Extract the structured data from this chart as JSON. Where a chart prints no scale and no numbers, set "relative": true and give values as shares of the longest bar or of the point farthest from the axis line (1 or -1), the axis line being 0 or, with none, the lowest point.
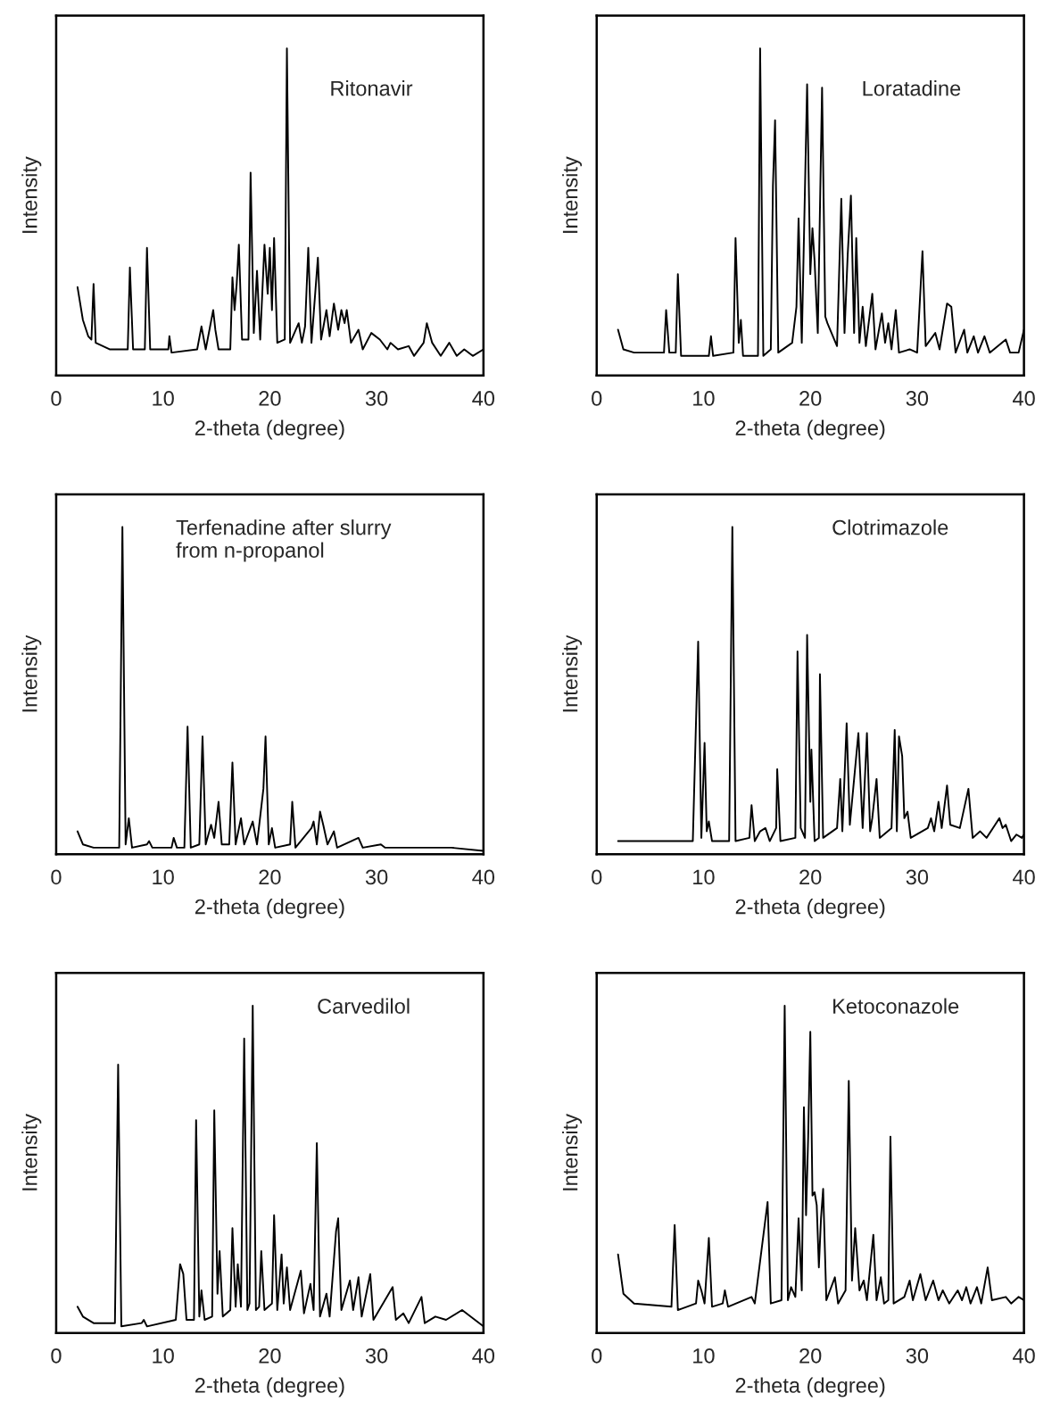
{
  "chart_data": [
    {
      "type": "line",
      "relative": true,
      "xlabel": "2-theta (degree)",
      "ylabel": "Intensity",
      "annotations": [
        "Ritonavir"
      ],
      "xlim": [
        0,
        40
      ],
      "xticks": [
        0,
        10,
        20,
        30,
        40
      ],
      "x": [
        2.0,
        2.5,
        3.0,
        3.3,
        3.5,
        3.7,
        5,
        6.7,
        6.9,
        7.2,
        8.3,
        8.5,
        8.8,
        10.5,
        10.6,
        10.8,
        13.2,
        13.6,
        14.0,
        14.7,
        14.9,
        15.2,
        16.3,
        16.5,
        16.7,
        16.9,
        17.1,
        17.4,
        18.0,
        18.2,
        18.5,
        18.8,
        19.1,
        19.5,
        19.8,
        20.0,
        20.2,
        20.4,
        20.7,
        21.4,
        21.6,
        21.9,
        22.7,
        23.0,
        23.3,
        23.6,
        23.9,
        24.5,
        24.8,
        25.3,
        25.6,
        26.0,
        26.4,
        26.7,
        27.0,
        27.2,
        27.6,
        28.3,
        28.7,
        29.5,
        30.3,
        31.0,
        31.3,
        32.0,
        33.0,
        33.5,
        34.4,
        34.7,
        35.2,
        36.0,
        36.8,
        37.5,
        38.2,
        39.0,
        40
      ],
      "series": [
        {
          "color": "#000000",
          "values": [
            0.27,
            0.17,
            0.12,
            0.11,
            0.28,
            0.1,
            0.08,
            0.08,
            0.33,
            0.08,
            0.08,
            0.39,
            0.08,
            0.08,
            0.12,
            0.07,
            0.08,
            0.15,
            0.08,
            0.2,
            0.14,
            0.08,
            0.08,
            0.3,
            0.2,
            0.28,
            0.4,
            0.11,
            0.11,
            0.62,
            0.13,
            0.32,
            0.11,
            0.4,
            0.25,
            0.39,
            0.2,
            0.42,
            0.1,
            0.11,
            1.0,
            0.1,
            0.16,
            0.1,
            0.15,
            0.39,
            0.1,
            0.36,
            0.11,
            0.2,
            0.12,
            0.22,
            0.14,
            0.2,
            0.16,
            0.2,
            0.1,
            0.14,
            0.08,
            0.13,
            0.11,
            0.08,
            0.1,
            0.08,
            0.09,
            0.06,
            0.1,
            0.16,
            0.1,
            0.06,
            0.1,
            0.06,
            0.08,
            0.06,
            0.08
          ]
        }
      ]
    },
    {
      "type": "line",
      "relative": true,
      "xlabel": "2-theta (degree)",
      "ylabel": "Intensity",
      "annotations": [
        "Loratadine"
      ],
      "xlim": [
        0,
        40
      ],
      "xticks": [
        0,
        10,
        20,
        30,
        40
      ],
      "x": [
        2.0,
        2.5,
        3.5,
        6.3,
        6.5,
        6.8,
        7.4,
        7.6,
        7.9,
        10.5,
        10.7,
        10.9,
        12.8,
        13.0,
        13.3,
        13.5,
        13.7,
        15.1,
        15.3,
        15.6,
        16.3,
        16.5,
        16.7,
        17.0,
        18.3,
        18.7,
        18.9,
        19.2,
        19.7,
        20.0,
        20.2,
        20.4,
        20.7,
        21.1,
        21.4,
        21.6,
        22.5,
        22.9,
        23.2,
        23.5,
        23.8,
        24.1,
        24.3,
        24.6,
        24.9,
        25.2,
        25.8,
        26.1,
        26.7,
        27.0,
        27.3,
        27.6,
        28.0,
        28.3,
        29.3,
        30.0,
        30.5,
        30.8,
        31.7,
        32.1,
        32.8,
        33.2,
        33.6,
        34.4,
        34.7,
        35.3,
        35.7,
        36.3,
        36.8,
        38.3,
        38.7,
        39.5,
        40
      ],
      "series": [
        {
          "color": "#000000",
          "values": [
            0.14,
            0.08,
            0.07,
            0.07,
            0.2,
            0.07,
            0.07,
            0.31,
            0.06,
            0.06,
            0.12,
            0.06,
            0.07,
            0.42,
            0.1,
            0.17,
            0.06,
            0.06,
            1.0,
            0.06,
            0.08,
            0.58,
            0.78,
            0.07,
            0.1,
            0.21,
            0.48,
            0.1,
            0.89,
            0.31,
            0.45,
            0.35,
            0.13,
            0.88,
            0.18,
            0.16,
            0.09,
            0.54,
            0.13,
            0.37,
            0.55,
            0.13,
            0.42,
            0.1,
            0.21,
            0.09,
            0.25,
            0.08,
            0.19,
            0.1,
            0.16,
            0.08,
            0.2,
            0.07,
            0.08,
            0.07,
            0.38,
            0.09,
            0.13,
            0.08,
            0.22,
            0.21,
            0.07,
            0.14,
            0.07,
            0.12,
            0.07,
            0.12,
            0.07,
            0.11,
            0.07,
            0.07,
            0.14
          ]
        }
      ]
    },
    {
      "type": "line",
      "relative": true,
      "xlabel": "2-theta (degree)",
      "ylabel": "Intensity",
      "annotations": [
        "Terfenadine after slurry\nfrom n-propanol"
      ],
      "xlim": [
        0,
        40
      ],
      "xticks": [
        0,
        10,
        20,
        30,
        40
      ],
      "x": [
        2.0,
        2.5,
        3.5,
        5.9,
        6.2,
        6.5,
        6.8,
        7.1,
        8.5,
        8.7,
        9.0,
        10.8,
        11.0,
        11.3,
        12.0,
        12.3,
        12.6,
        13.4,
        13.7,
        14.0,
        14.5,
        14.8,
        15.2,
        15.5,
        16.2,
        16.5,
        16.8,
        17.3,
        17.6,
        18.4,
        18.8,
        19.4,
        19.6,
        19.9,
        20.2,
        20.5,
        21.9,
        22.1,
        22.4,
        23.9,
        24.1,
        24.4,
        24.7,
        25.0,
        25.4,
        26.0,
        26.3,
        28.3,
        28.7,
        30.4,
        30.8,
        33.5,
        37.0,
        40
      ],
      "series": [
        {
          "color": "#000000",
          "values": [
            0.07,
            0.03,
            0.02,
            0.02,
            1.0,
            0.03,
            0.11,
            0.02,
            0.03,
            0.04,
            0.02,
            0.02,
            0.05,
            0.02,
            0.02,
            0.39,
            0.02,
            0.03,
            0.36,
            0.03,
            0.09,
            0.05,
            0.16,
            0.03,
            0.03,
            0.28,
            0.03,
            0.11,
            0.03,
            0.1,
            0.03,
            0.2,
            0.36,
            0.03,
            0.08,
            0.02,
            0.03,
            0.16,
            0.02,
            0.08,
            0.1,
            0.03,
            0.13,
            0.09,
            0.03,
            0.07,
            0.02,
            0.05,
            0.02,
            0.03,
            0.02,
            0.02,
            0.02,
            0.01
          ]
        }
      ]
    },
    {
      "type": "line",
      "relative": true,
      "xlabel": "2-theta (degree)",
      "ylabel": "Intensity",
      "annotations": [
        "Clotrimazole"
      ],
      "xlim": [
        0,
        40
      ],
      "xticks": [
        0,
        10,
        20,
        30,
        40
      ],
      "x": [
        2.0,
        9.0,
        9.5,
        9.8,
        10.1,
        10.3,
        10.5,
        10.8,
        12.4,
        12.7,
        13.0,
        14.3,
        14.5,
        14.8,
        15.3,
        15.8,
        16.2,
        16.8,
        16.9,
        17.2,
        18.6,
        18.8,
        19.1,
        19.5,
        19.7,
        20.0,
        20.1,
        20.4,
        20.8,
        20.9,
        21.2,
        22.5,
        22.8,
        23.0,
        23.4,
        23.7,
        24.5,
        24.9,
        25.3,
        25.6,
        25.8,
        26.2,
        26.5,
        27.6,
        27.9,
        28.1,
        28.3,
        28.6,
        28.8,
        29.1,
        29.4,
        31.0,
        31.3,
        31.6,
        32.0,
        32.3,
        32.8,
        33.1,
        34.0,
        34.8,
        35.2,
        35.9,
        36.5,
        37.3,
        37.7,
        38.0,
        38.3,
        38.8,
        39.3,
        39.8,
        40
      ],
      "series": [
        {
          "color": "#000000",
          "values": [
            0.04,
            0.04,
            0.65,
            0.05,
            0.34,
            0.07,
            0.1,
            0.04,
            0.04,
            1.0,
            0.04,
            0.05,
            0.15,
            0.04,
            0.07,
            0.08,
            0.04,
            0.08,
            0.26,
            0.04,
            0.05,
            0.62,
            0.08,
            0.05,
            0.67,
            0.16,
            0.32,
            0.04,
            0.05,
            0.55,
            0.05,
            0.08,
            0.23,
            0.07,
            0.4,
            0.09,
            0.37,
            0.08,
            0.37,
            0.07,
            0.11,
            0.23,
            0.05,
            0.08,
            0.38,
            0.07,
            0.36,
            0.3,
            0.11,
            0.13,
            0.05,
            0.08,
            0.11,
            0.07,
            0.16,
            0.08,
            0.21,
            0.09,
            0.08,
            0.2,
            0.05,
            0.07,
            0.05,
            0.09,
            0.11,
            0.08,
            0.09,
            0.04,
            0.06,
            0.05,
            0.06
          ]
        }
      ]
    },
    {
      "type": "line",
      "relative": true,
      "xlabel": "2-theta (degree)",
      "ylabel": "Intensity",
      "annotations": [
        "Carvedilol"
      ],
      "xlim": [
        0,
        40
      ],
      "xticks": [
        0,
        10,
        20,
        30,
        40
      ],
      "x": [
        2.0,
        2.5,
        3.5,
        5.5,
        5.8,
        6.1,
        8.0,
        8.2,
        8.5,
        11.2,
        11.6,
        11.9,
        12.2,
        12.9,
        13.1,
        13.4,
        13.6,
        13.9,
        14.6,
        14.8,
        15.1,
        15.3,
        15.6,
        16.3,
        16.5,
        16.8,
        17.0,
        17.3,
        17.6,
        17.9,
        18.1,
        18.4,
        18.7,
        19.0,
        19.2,
        19.5,
        20.2,
        20.4,
        20.7,
        21.1,
        21.3,
        21.6,
        21.9,
        22.9,
        23.2,
        23.8,
        24.1,
        24.4,
        24.7,
        25.3,
        25.6,
        26.2,
        26.4,
        26.7,
        27.5,
        27.8,
        28.3,
        28.6,
        29.4,
        29.7,
        31.5,
        31.8,
        32.5,
        33.0,
        34.2,
        34.5,
        35.5,
        36.5,
        38.0,
        39.2,
        40
      ],
      "series": [
        {
          "color": "#000000",
          "values": [
            0.08,
            0.05,
            0.03,
            0.03,
            0.82,
            0.02,
            0.03,
            0.04,
            0.02,
            0.04,
            0.21,
            0.18,
            0.04,
            0.04,
            0.65,
            0.05,
            0.13,
            0.04,
            0.05,
            0.68,
            0.12,
            0.25,
            0.05,
            0.07,
            0.32,
            0.08,
            0.21,
            0.08,
            0.9,
            0.07,
            0.09,
            1.0,
            0.07,
            0.08,
            0.25,
            0.07,
            0.09,
            0.36,
            0.07,
            0.24,
            0.09,
            0.2,
            0.07,
            0.19,
            0.06,
            0.15,
            0.07,
            0.58,
            0.05,
            0.12,
            0.05,
            0.31,
            0.35,
            0.07,
            0.16,
            0.07,
            0.17,
            0.05,
            0.18,
            0.04,
            0.14,
            0.04,
            0.06,
            0.03,
            0.11,
            0.03,
            0.05,
            0.04,
            0.07,
            0.04,
            0.02
          ]
        }
      ]
    },
    {
      "type": "line",
      "relative": true,
      "xlabel": "2-theta (degree)",
      "ylabel": "Intensity",
      "annotations": [
        "Ketoconazole"
      ],
      "xlim": [
        0,
        40
      ],
      "xticks": [
        0,
        10,
        20,
        30,
        40
      ],
      "x": [
        2.0,
        2.5,
        3.5,
        7.0,
        7.3,
        7.6,
        9.3,
        9.5,
        9.8,
        10.1,
        10.5,
        10.8,
        11.8,
        12.0,
        12.3,
        14.5,
        14.8,
        16.0,
        16.3,
        17.3,
        17.6,
        17.9,
        18.2,
        18.6,
        18.9,
        19.2,
        19.4,
        19.6,
        19.8,
        20.0,
        20.2,
        20.4,
        20.6,
        20.8,
        21.0,
        21.2,
        21.5,
        22.3,
        22.6,
        23.3,
        23.6,
        23.9,
        24.2,
        24.6,
        25.0,
        25.3,
        25.9,
        26.2,
        26.6,
        26.9,
        27.3,
        27.5,
        27.8,
        28.8,
        29.3,
        29.6,
        30.3,
        30.8,
        31.5,
        32.0,
        32.4,
        33.0,
        33.8,
        34.2,
        34.6,
        35.0,
        35.6,
        36.0,
        36.6,
        37.0,
        38.3,
        38.8,
        39.5,
        40
      ],
      "series": [
        {
          "color": "#000000",
          "values": [
            0.24,
            0.12,
            0.09,
            0.08,
            0.33,
            0.07,
            0.09,
            0.16,
            0.13,
            0.09,
            0.29,
            0.08,
            0.09,
            0.13,
            0.08,
            0.11,
            0.09,
            0.4,
            0.09,
            0.1,
            1.0,
            0.1,
            0.14,
            0.11,
            0.35,
            0.13,
            0.69,
            0.36,
            0.6,
            0.92,
            0.42,
            0.43,
            0.39,
            0.2,
            0.35,
            0.44,
            0.1,
            0.17,
            0.09,
            0.13,
            0.77,
            0.16,
            0.32,
            0.13,
            0.16,
            0.1,
            0.3,
            0.1,
            0.17,
            0.09,
            0.1,
            0.6,
            0.09,
            0.11,
            0.16,
            0.1,
            0.18,
            0.1,
            0.16,
            0.1,
            0.13,
            0.09,
            0.13,
            0.1,
            0.14,
            0.09,
            0.14,
            0.09,
            0.2,
            0.1,
            0.11,
            0.09,
            0.11,
            0.1
          ]
        }
      ]
    }
  ]
}
